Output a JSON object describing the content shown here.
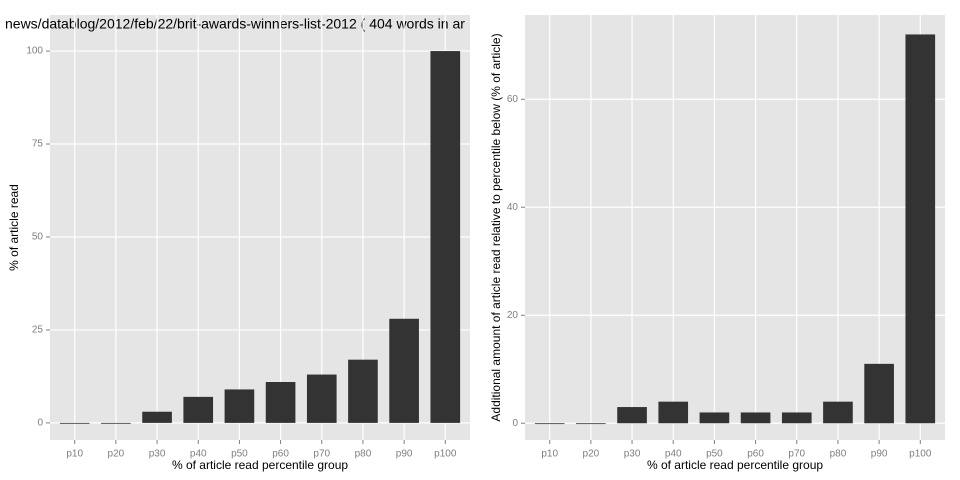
{
  "chart_data": [
    {
      "type": "bar",
      "title": "news/datablog/2012/feb/22/brit-awards-winners-list-2012 ( 404 words in ar",
      "x_label": "% of article read percentile group",
      "y_label": "% of article read",
      "categories": [
        "p10",
        "p20",
        "p30",
        "p40",
        "p50",
        "p60",
        "p70",
        "p80",
        "p90",
        "p100"
      ],
      "values": [
        0,
        0,
        3,
        7,
        9,
        11,
        13,
        17,
        28,
        100
      ],
      "color": "#333333",
      "ylim": [
        -4.6,
        109.7
      ],
      "yticks": [
        0,
        25,
        50,
        75,
        100
      ],
      "grid": true
    },
    {
      "type": "bar",
      "x_label": "% of article read percentile group",
      "y_label": "Additional amount of article read relative to percentile below (% of article)",
      "categories": [
        "p10",
        "p20",
        "p30",
        "p40",
        "p50",
        "p60",
        "p70",
        "p80",
        "p90",
        "p100"
      ],
      "values": [
        0,
        0,
        3,
        4,
        2,
        2,
        2,
        4,
        11,
        72
      ],
      "color": "#333333",
      "ylim": [
        -3.1,
        75.6
      ],
      "yticks": [
        0,
        20,
        40,
        60
      ],
      "grid": true
    }
  ]
}
